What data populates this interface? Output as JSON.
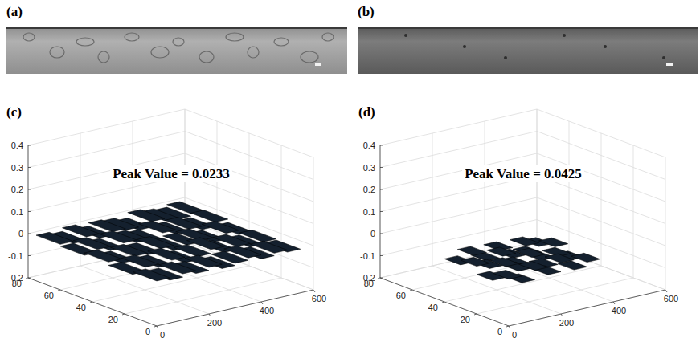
{
  "chart_data": [
    {
      "type": "image",
      "panel": "(a)"
    },
    {
      "type": "image",
      "panel": "(b)"
    },
    {
      "type": "surface",
      "panel": "(c)",
      "annotation": "Peak Value = 0.0233",
      "xlim": [
        0,
        600
      ],
      "xticks": [
        0,
        200,
        400,
        600
      ],
      "ylim": [
        0,
        80
      ],
      "yticks": [
        0,
        20,
        40,
        60,
        80
      ],
      "zlim": [
        -0.2,
        0.4
      ],
      "zticks": [
        -0.2,
        -0.1,
        0,
        0.1,
        0.2,
        0.3,
        0.4
      ],
      "grid": true,
      "color": "#14202e",
      "x_edges": [
        0,
        50,
        100,
        150,
        200,
        250,
        300,
        350,
        400,
        450,
        500,
        550
      ],
      "y_edges": [
        0,
        15,
        30,
        45,
        60,
        75
      ],
      "z": [
        [
          0.004,
          -0.006,
          0.009,
          -0.003,
          0.011,
          -0.008,
          0.002,
          0.013,
          -0.005,
          0.007,
          -0.002
        ],
        [
          -0.007,
          0.012,
          -0.002,
          0.016,
          -0.009,
          0.005,
          0.0233,
          -0.004,
          0.01,
          -0.006,
          0.003
        ],
        [
          0.008,
          -0.011,
          0.006,
          -0.001,
          0.014,
          -0.007,
          0.003,
          0.009,
          -0.012,
          0.015,
          -0.004
        ],
        [
          -0.003,
          0.01,
          -0.008,
          0.012,
          0.001,
          -0.01,
          0.017,
          -0.002,
          0.006,
          -0.009,
          0.011
        ],
        [
          0.006,
          -0.004,
          0.013,
          -0.006,
          0.008,
          0.002,
          -0.011,
          0.014,
          0.004,
          -0.003,
          0.009
        ]
      ]
    },
    {
      "type": "surface",
      "panel": "(d)",
      "annotation": "Peak Value = 0.0425",
      "xlim": [
        0,
        600
      ],
      "xticks": [
        0,
        200,
        400,
        600
      ],
      "ylim": [
        0,
        80
      ],
      "yticks": [
        0,
        20,
        40,
        60,
        80
      ],
      "zlim": [
        -0.2,
        0.4
      ],
      "zticks": [
        -0.2,
        -0.1,
        0,
        0.1,
        0.2,
        0.3,
        0.4
      ],
      "grid": true,
      "color": "#14202e",
      "x_edges": [
        0,
        50,
        100,
        150,
        200,
        250,
        300,
        350
      ],
      "y_edges": [
        0,
        10,
        20,
        30,
        40
      ],
      "z": [
        [
          0.012,
          -0.018,
          0.025,
          -0.009,
          0.031,
          -0.014,
          0.007
        ],
        [
          -0.021,
          0.028,
          -0.006,
          0.0425,
          -0.017,
          0.019,
          -0.011
        ],
        [
          0.016,
          -0.008,
          0.034,
          -0.023,
          0.011,
          -0.026,
          0.022
        ],
        [
          -0.005,
          0.024,
          -0.015,
          0.018,
          -0.029,
          0.013,
          -0.004
        ]
      ]
    }
  ]
}
